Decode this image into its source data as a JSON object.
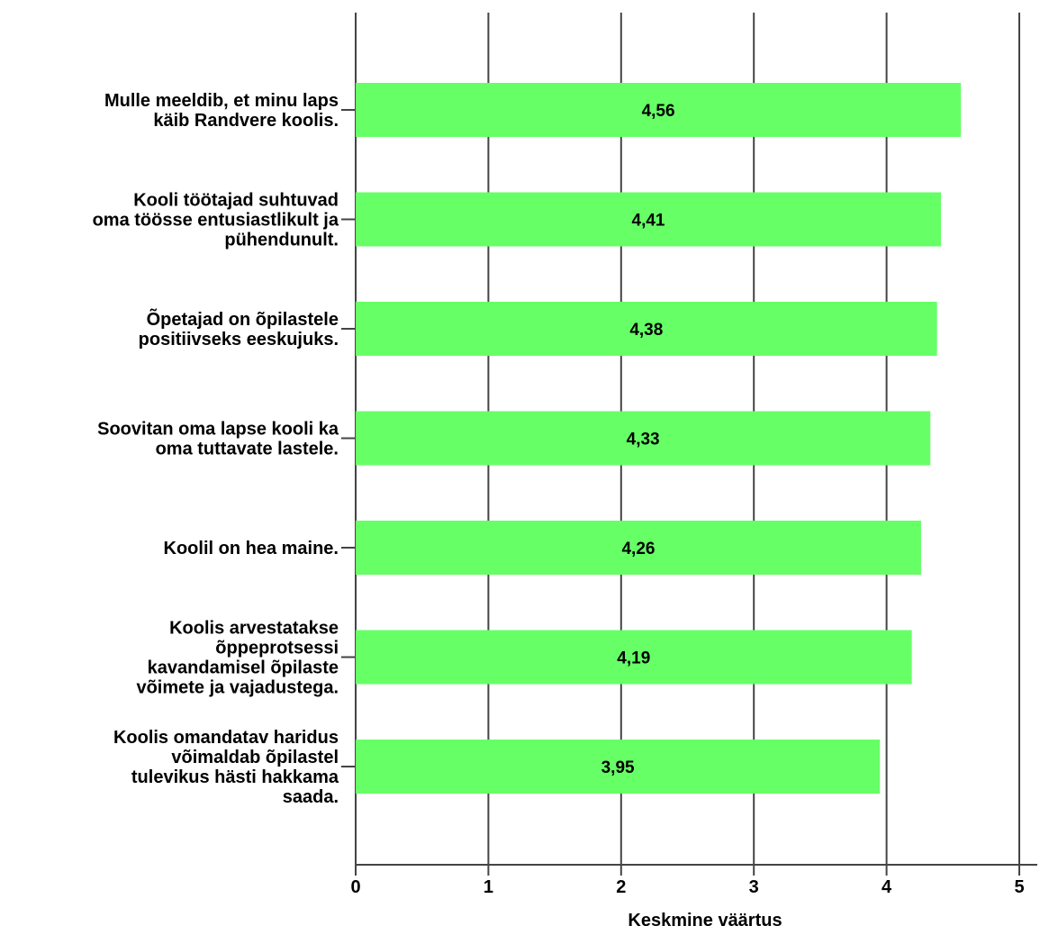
{
  "chart_data": {
    "type": "bar",
    "orientation": "horizontal",
    "categories": [
      [
        "Mulle meeldib, et minu laps",
        "käib Randvere koolis."
      ],
      [
        "Kooli töötajad suhtuvad",
        "oma töösse entusiastlikult ja",
        "pühendunult."
      ],
      [
        "Õpetajad on õpilastele",
        "positiivseks eeskujuks."
      ],
      [
        "Soovitan oma lapse kooli ka",
        "oma tuttavate lastele."
      ],
      [
        "Koolil on hea maine."
      ],
      [
        "Koolis arvestatakse",
        "õppeprotsessi",
        "kavandamisel õpilaste",
        "võimete ja vajadustega."
      ],
      [
        "Koolis omandatav haridus",
        "võimaldab õpilastel",
        "tulevikus hästi hakkama",
        "saada."
      ]
    ],
    "values": [
      4.56,
      4.41,
      4.38,
      4.33,
      4.26,
      4.19,
      3.95
    ],
    "value_labels": [
      "4,56",
      "4,41",
      "4,38",
      "4,33",
      "4,26",
      "4,19",
      "3,95"
    ],
    "xlabel": "Keskmine väärtus",
    "xlim": [
      0,
      5
    ],
    "xticks": [
      "0",
      "1",
      "2",
      "3",
      "4",
      "5"
    ],
    "grid": true,
    "bar_color": "#66ff66"
  }
}
